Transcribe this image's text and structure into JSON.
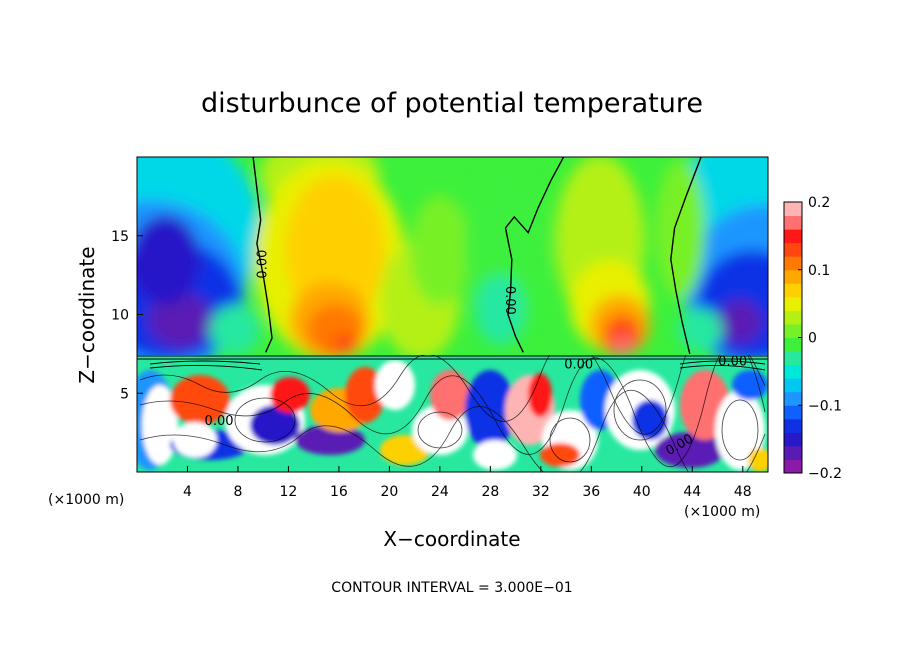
{
  "chart_data": {
    "type": "heatmap",
    "title": "disturbunce of potential temperature",
    "xlabel": "X−coordinate",
    "ylabel": "Z−coordinate",
    "x_unit_left": "(×1000 m)",
    "x_unit_right": "(×1000 m)",
    "xlim": [
      0,
      50
    ],
    "ylim": [
      0,
      20
    ],
    "x_ticks": [
      4,
      8,
      12,
      16,
      20,
      24,
      28,
      32,
      36,
      40,
      44,
      48
    ],
    "y_ticks": [
      5,
      10,
      15
    ],
    "colorbar": {
      "vmin": -0.2,
      "vmax": 0.2,
      "ticks": [
        {
          "value": 0.2,
          "label": "0.2"
        },
        {
          "value": 0.1,
          "label": "0.1"
        },
        {
          "value": 0,
          "label": "0"
        },
        {
          "value": -0.1,
          "label": "−0.1"
        },
        {
          "value": -0.2,
          "label": "−0.2"
        }
      ],
      "colors": [
        "#8c1aa8",
        "#5a1ab4",
        "#2818c8",
        "#1030e6",
        "#1060ff",
        "#1e96ff",
        "#00c8f0",
        "#00e8d8",
        "#28e8a0",
        "#3cf03c",
        "#78f028",
        "#b4f014",
        "#e8f000",
        "#ffd000",
        "#ffa800",
        "#ff7800",
        "#ff4810",
        "#ff1818",
        "#ff7070",
        "#ffb4b4"
      ]
    },
    "contour_labels": [
      {
        "text": "0.00",
        "x": 10.0,
        "z": 13.2,
        "rotate": -90
      },
      {
        "text": "0.00",
        "x": 29.5,
        "z": 10.9,
        "rotate": 90
      },
      {
        "text": "0.00",
        "x": 35.0,
        "z": 6.8,
        "rotate": 0
      },
      {
        "text": "0.00",
        "x": 47.2,
        "z": 7.0,
        "rotate": 0
      },
      {
        "text": "0.00",
        "x": 6.5,
        "z": 3.2,
        "rotate": 0
      },
      {
        "text": "0.00",
        "x": 43.0,
        "z": 1.7,
        "rotate": -30
      }
    ],
    "zero_contours": [
      {
        "points": [
          [
            9.2,
            20
          ],
          [
            9.5,
            18
          ],
          [
            9.8,
            16
          ],
          [
            9.5,
            14.5
          ],
          [
            10.0,
            12.5
          ],
          [
            10.4,
            10.5
          ],
          [
            10.7,
            8.5
          ],
          [
            10.2,
            7.6
          ]
        ]
      },
      {
        "points": [
          [
            43.8,
            7.5
          ],
          [
            43.2,
            9.5
          ],
          [
            42.7,
            11.5
          ],
          [
            42.3,
            13.5
          ],
          [
            42.6,
            15.5
          ],
          [
            43.5,
            17.5
          ],
          [
            44.7,
            20
          ]
        ]
      },
      {
        "points": [
          [
            30.6,
            7.6
          ],
          [
            30.0,
            8.6
          ],
          [
            29.4,
            10.0
          ],
          [
            29.6,
            11.5
          ],
          [
            29.7,
            13.5
          ],
          [
            29.2,
            15.5
          ],
          [
            29.9,
            16.2
          ],
          [
            31.0,
            15.2
          ],
          [
            31.8,
            16.8
          ],
          [
            32.8,
            18.5
          ],
          [
            33.8,
            20
          ]
        ]
      }
    ],
    "contour_interval_label": "CONTOUR INTERVAL =  3.000E−01"
  }
}
